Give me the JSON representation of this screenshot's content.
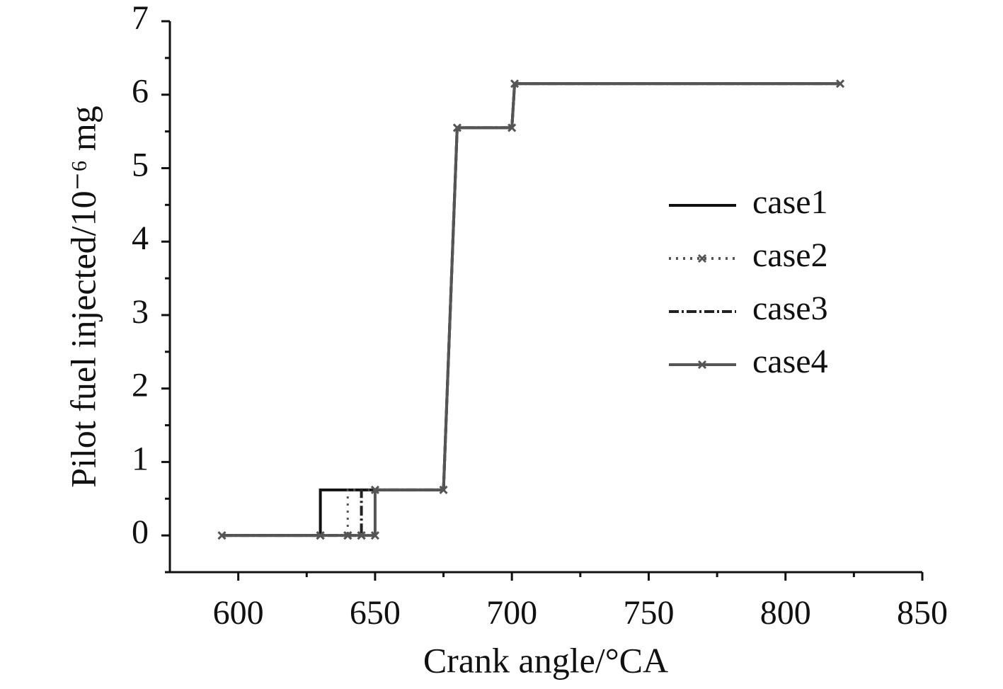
{
  "chart_data": {
    "type": "line",
    "xlabel": "Crank angle/°CA",
    "ylabel": "Pilot fuel injected/10⁻⁶ mg",
    "x": [
      594,
      630,
      630,
      640,
      640,
      645,
      645,
      650,
      650,
      675,
      680,
      700,
      701,
      820
    ],
    "series": [
      {
        "name": "case1",
        "color": "#111111",
        "linestyle": "solid",
        "marker": false,
        "values": [
          0,
          0,
          0.62,
          0.62,
          0.62,
          0.62,
          0.62,
          0.62,
          0.62,
          0.62,
          5.55,
          5.55,
          6.15,
          6.15
        ]
      },
      {
        "name": "case2",
        "color": "#555555",
        "linestyle": "dotted",
        "marker": false,
        "values": [
          0,
          0,
          0,
          0,
          0.62,
          0.62,
          0.62,
          0.62,
          0.62,
          0.62,
          5.55,
          5.55,
          6.15,
          6.15
        ]
      },
      {
        "name": "case3",
        "color": "#222222",
        "linestyle": "dashdot",
        "marker": false,
        "values": [
          0,
          0,
          0,
          0,
          0,
          0,
          0.62,
          0.62,
          0.62,
          0.62,
          5.55,
          5.55,
          6.15,
          6.15
        ]
      },
      {
        "name": "case4",
        "color": "#555555",
        "linestyle": "solid",
        "marker": true,
        "values": [
          0,
          0,
          0,
          0,
          0,
          0,
          0,
          0,
          0.62,
          0.62,
          5.55,
          5.55,
          6.15,
          6.15
        ]
      }
    ],
    "xlim": [
      575,
      850
    ],
    "xticks": [
      600,
      650,
      700,
      750,
      800,
      850
    ],
    "xminorticks": [
      625,
      675,
      725,
      775,
      825
    ],
    "ylim": [
      -0.5,
      7
    ],
    "yticks": [
      0,
      1,
      2,
      3,
      4,
      5,
      6,
      7
    ],
    "yminorticks": [
      -0.5,
      0.5,
      1.5,
      2.5,
      3.5,
      4.5,
      5.5,
      6.5
    ],
    "grid": false,
    "legend": "right"
  }
}
